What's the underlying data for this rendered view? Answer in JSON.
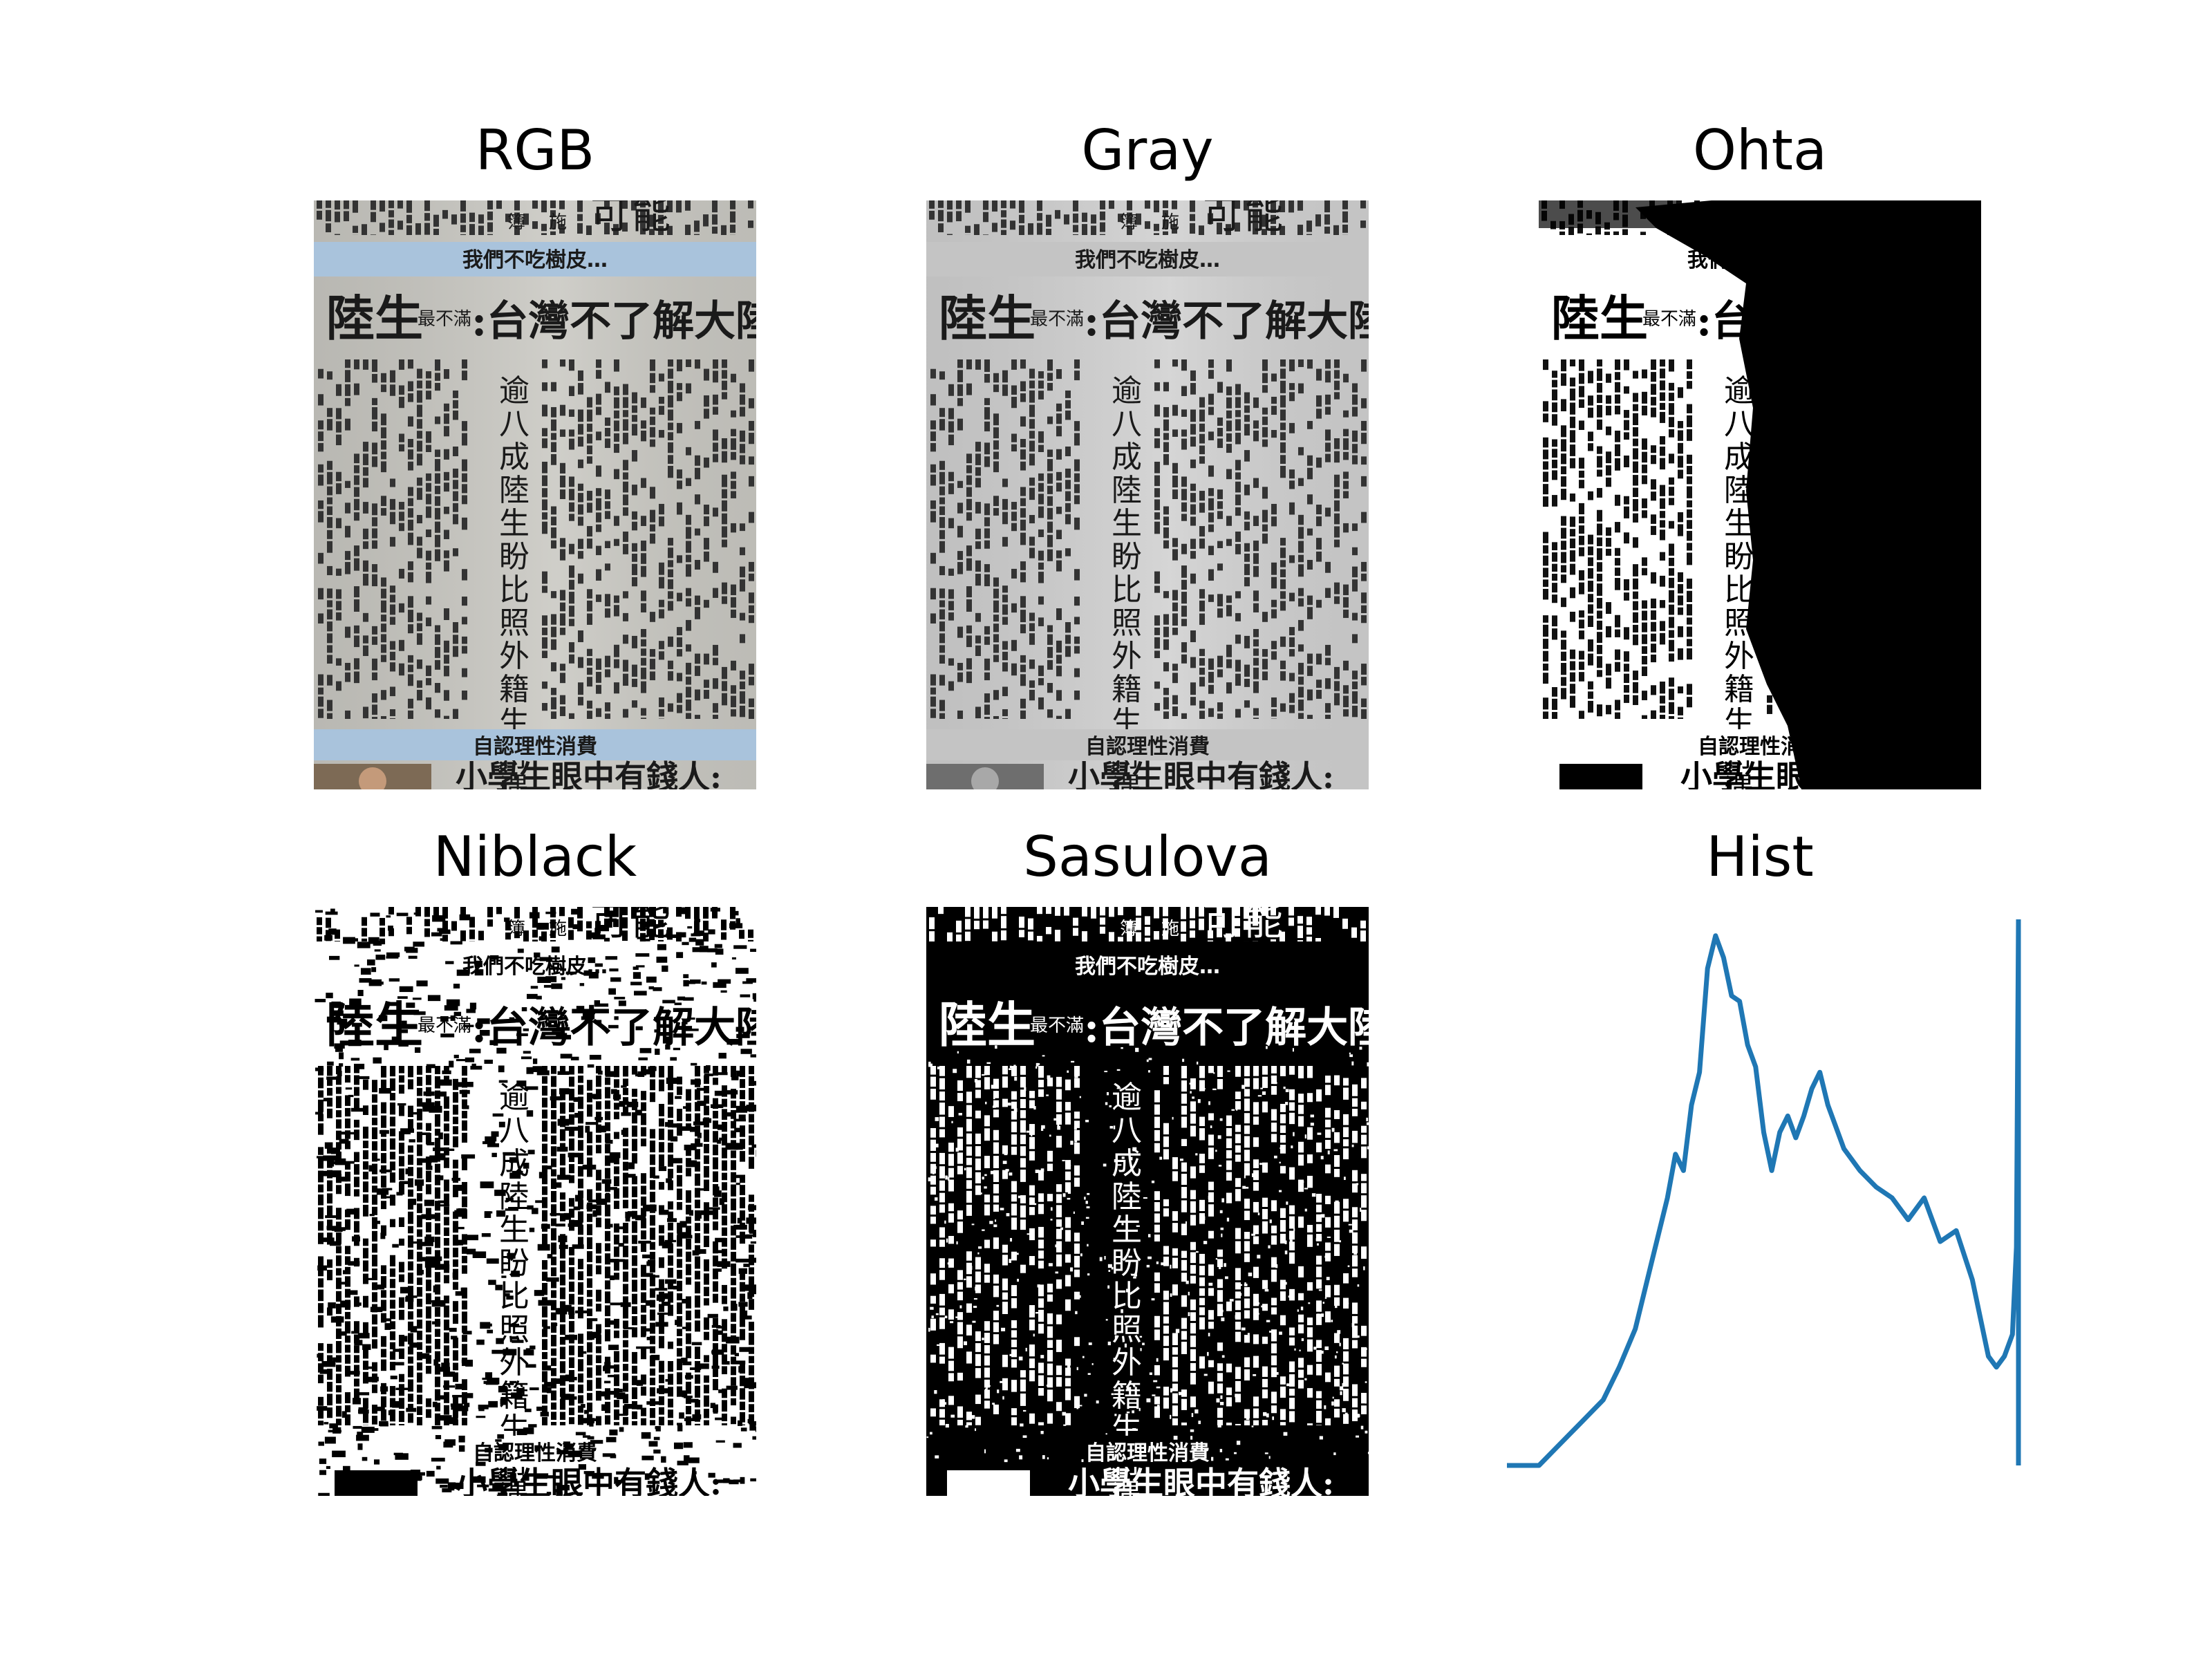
{
  "titles": {
    "rgb": "RGB",
    "gray": "Gray",
    "ohta": "Ohta",
    "niblack": "Niblack",
    "sasulova": "Sasulova",
    "hist": "Hist"
  },
  "newspaper": {
    "subhead_top": "我們不吃樹皮…",
    "headline_left": "陸生",
    "headline_small": "最不滿",
    "headline_right": ":台灣不了解大陸",
    "vertical_line_1": "逾八成陸生",
    "vertical_line_2": "盼比照外籍生待遇",
    "section_label": "自認理性消費",
    "bottom_headline": "小學生眼中有錢人:",
    "masthead_chars": [
      "簿",
      "施",
      "可",
      "能"
    ]
  },
  "colors": {
    "hist_line": "#1f77b4",
    "paper_rgb": "#c9c8c2",
    "banner_rgb": "#a9c3dc",
    "paper_gray": "#d0d0d0",
    "banner_gray": "#c4c4c4",
    "ink": "#1a1a1a"
  },
  "chart_data": {
    "type": "line",
    "title": "Hist",
    "axes_visible": false,
    "x": [
      0,
      8,
      16,
      24,
      32,
      40,
      48,
      56,
      64,
      72,
      80,
      84,
      88,
      92,
      96,
      100,
      104,
      108,
      112,
      116,
      120,
      124,
      128,
      132,
      136,
      140,
      144,
      148,
      152,
      156,
      160,
      168,
      176,
      184,
      192,
      200,
      208,
      216,
      224,
      232,
      240,
      244,
      248,
      250,
      252,
      254,
      255
    ],
    "values": [
      0,
      0,
      0,
      0.03,
      0.06,
      0.09,
      0.12,
      0.18,
      0.25,
      0.37,
      0.49,
      0.57,
      0.54,
      0.66,
      0.72,
      0.91,
      0.97,
      0.93,
      0.86,
      0.85,
      0.77,
      0.73,
      0.61,
      0.54,
      0.61,
      0.64,
      0.6,
      0.64,
      0.69,
      0.72,
      0.66,
      0.58,
      0.54,
      0.51,
      0.49,
      0.45,
      0.49,
      0.41,
      0.43,
      0.34,
      0.2,
      0.18,
      0.2,
      0.22,
      0.24,
      0.4,
      1.0
    ],
    "ylim": [
      0,
      1
    ]
  }
}
